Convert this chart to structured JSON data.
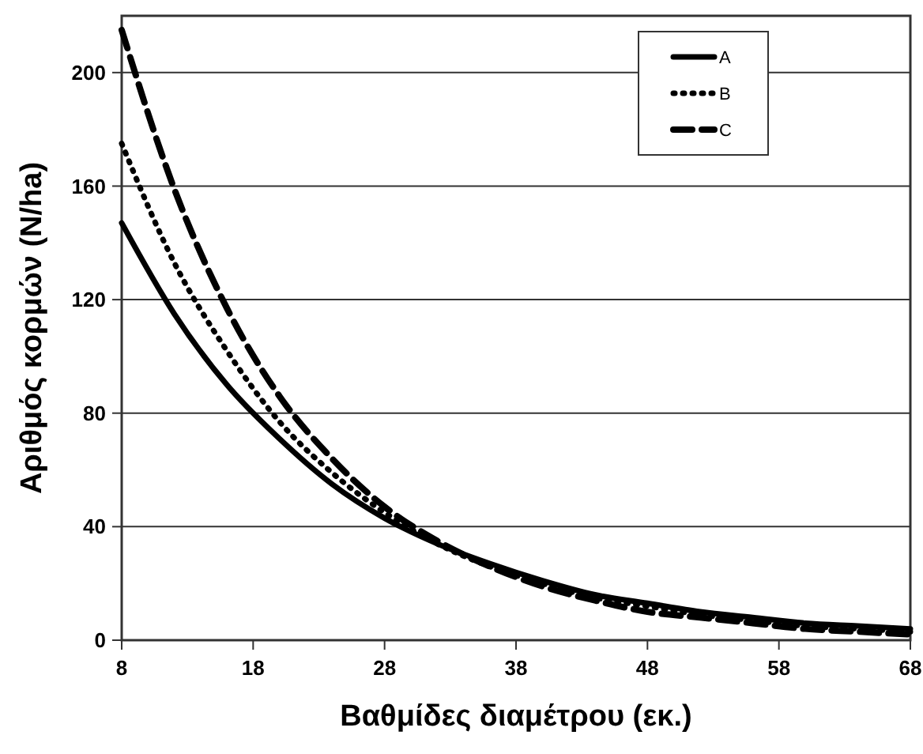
{
  "chart_data": {
    "type": "line",
    "xlabel": "Βαθμίδες διαμέτρου (εκ.)",
    "ylabel": "Αριθμός κορμών (N/ha)",
    "x": [
      8,
      12,
      16,
      20,
      24,
      28,
      32,
      36,
      40,
      44,
      48,
      52,
      56,
      60,
      64,
      68
    ],
    "series": [
      {
        "name": "A",
        "color": "#000000",
        "line_style": "solid",
        "values": [
          147,
          115,
          90,
          71,
          55,
          43,
          34,
          27,
          21,
          16,
          13,
          10,
          8,
          6,
          5,
          4
        ]
      },
      {
        "name": "B",
        "color": "#000000",
        "line_style": "dotted",
        "values": [
          175,
          133,
          102,
          77,
          59,
          45,
          34,
          26,
          20,
          15,
          12,
          9,
          7,
          5,
          4,
          3
        ]
      },
      {
        "name": "C",
        "color": "#000000",
        "line_style": "dashed",
        "values": [
          215,
          159,
          117,
          86,
          64,
          47,
          35,
          26,
          19,
          14,
          10,
          8,
          6,
          4,
          3,
          2
        ]
      }
    ],
    "xlim": [
      8,
      68
    ],
    "xticks": [
      8,
      18,
      28,
      38,
      48,
      58,
      68
    ],
    "ylim": [
      0,
      220
    ],
    "yticks": [
      0,
      40,
      80,
      120,
      160,
      200
    ],
    "grid": "y",
    "legend": "top right",
    "marker": "none"
  }
}
